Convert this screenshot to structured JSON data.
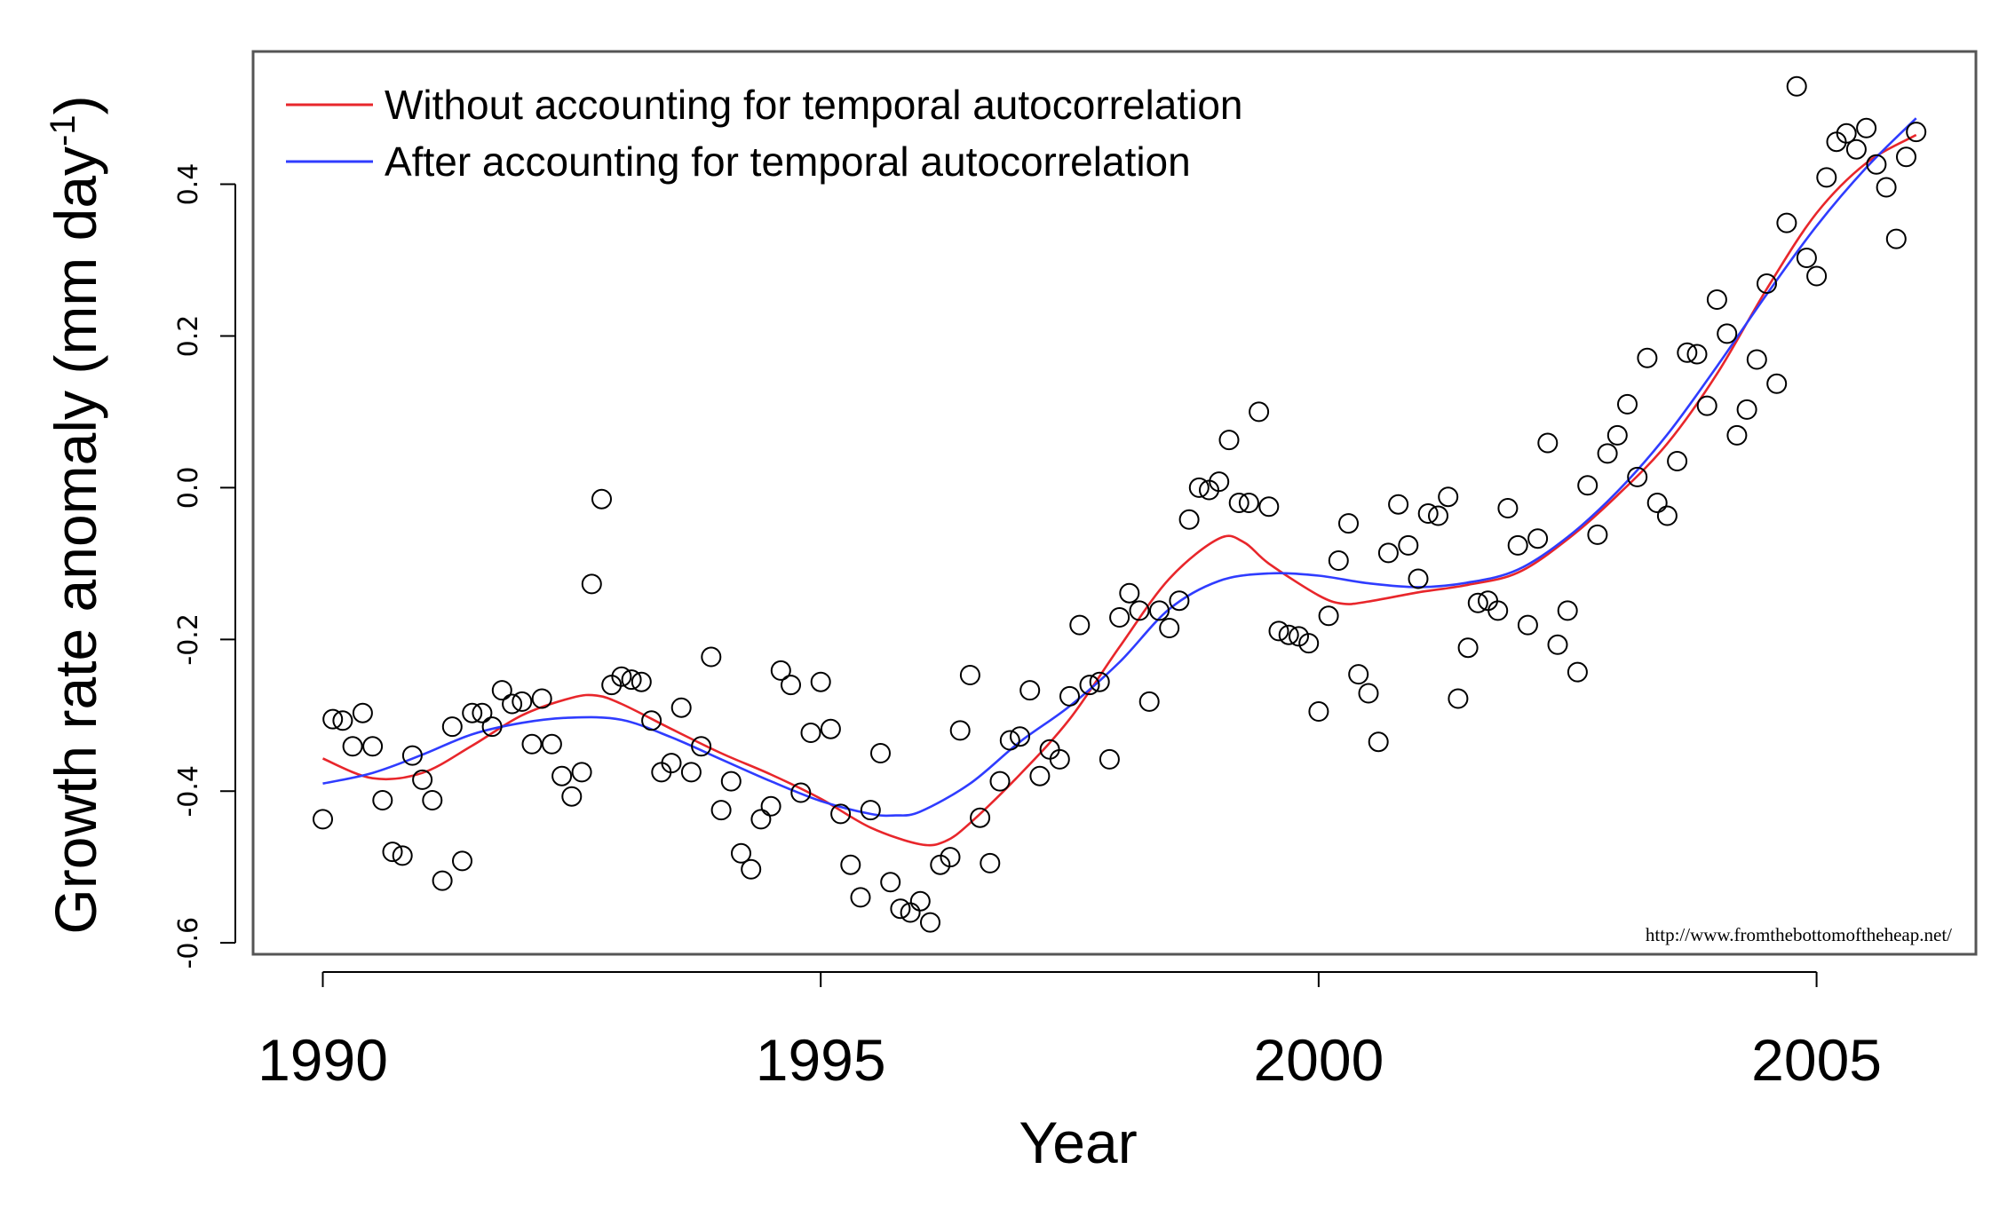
{
  "chart_data": {
    "type": "scatter",
    "title": "",
    "xlabel": "Year",
    "ylabel": "Growth rate anomaly (mm day",
    "ylabel_unit_superscript": "-1",
    "ylabel_close": ")",
    "xlim": [
      1989.3,
      2006.6
    ],
    "ylim": [
      -0.615,
      0.575
    ],
    "x_ticks": [
      {
        "value": 1990,
        "label": "1990"
      },
      {
        "value": 1995,
        "label": "1995"
      },
      {
        "value": 2000,
        "label": "2000"
      },
      {
        "value": 2005,
        "label": "2005"
      }
    ],
    "y_ticks": [
      {
        "value": -0.6,
        "label": "-0.6"
      },
      {
        "value": -0.4,
        "label": "-0.4"
      },
      {
        "value": -0.2,
        "label": "-0.2"
      },
      {
        "value": 0.0,
        "label": "0.0"
      },
      {
        "value": 0.2,
        "label": "0.2"
      },
      {
        "value": 0.4,
        "label": "0.4"
      }
    ],
    "legend": {
      "placement": "top-left",
      "entries": [
        {
          "label": "Without accounting for temporal autocorrelation",
          "color": "#e8262b"
        },
        {
          "label": "After accounting for temporal autocorrelation",
          "color": "#2f3cff"
        }
      ]
    },
    "annotation": "http://www.fromthebottomoftheheap.net/",
    "point_style": {
      "color": "#000000",
      "fill": "none"
    },
    "points": [
      [
        1990.0,
        -0.437
      ],
      [
        1990.1,
        -0.305
      ],
      [
        1990.2,
        -0.307
      ],
      [
        1990.3,
        -0.341
      ],
      [
        1990.4,
        -0.297
      ],
      [
        1990.5,
        -0.341
      ],
      [
        1990.6,
        -0.412
      ],
      [
        1990.7,
        -0.48
      ],
      [
        1990.8,
        -0.485
      ],
      [
        1990.9,
        -0.353
      ],
      [
        1991.0,
        -0.385
      ],
      [
        1991.1,
        -0.412
      ],
      [
        1991.2,
        -0.518
      ],
      [
        1991.3,
        -0.315
      ],
      [
        1991.4,
        -0.492
      ],
      [
        1991.5,
        -0.297
      ],
      [
        1991.6,
        -0.297
      ],
      [
        1991.7,
        -0.315
      ],
      [
        1991.8,
        -0.267
      ],
      [
        1991.9,
        -0.285
      ],
      [
        1992.0,
        -0.282
      ],
      [
        1992.1,
        -0.338
      ],
      [
        1992.2,
        -0.278
      ],
      [
        1992.3,
        -0.338
      ],
      [
        1992.4,
        -0.38
      ],
      [
        1992.5,
        -0.407
      ],
      [
        1992.6,
        -0.375
      ],
      [
        1992.7,
        -0.127
      ],
      [
        1992.8,
        -0.015
      ],
      [
        1992.9,
        -0.26
      ],
      [
        1993.0,
        -0.249
      ],
      [
        1993.1,
        -0.253
      ],
      [
        1993.2,
        -0.256
      ],
      [
        1993.3,
        -0.307
      ],
      [
        1993.4,
        -0.375
      ],
      [
        1993.5,
        -0.363
      ],
      [
        1993.6,
        -0.29
      ],
      [
        1993.7,
        -0.375
      ],
      [
        1993.8,
        -0.341
      ],
      [
        1993.9,
        -0.223
      ],
      [
        1994.0,
        -0.425
      ],
      [
        1994.1,
        -0.387
      ],
      [
        1994.2,
        -0.482
      ],
      [
        1994.3,
        -0.503
      ],
      [
        1994.4,
        -0.437
      ],
      [
        1994.5,
        -0.42
      ],
      [
        1994.6,
        -0.241
      ],
      [
        1994.7,
        -0.26
      ],
      [
        1994.8,
        -0.402
      ],
      [
        1994.9,
        -0.323
      ],
      [
        1995.0,
        -0.256
      ],
      [
        1995.1,
        -0.318
      ],
      [
        1995.2,
        -0.43
      ],
      [
        1995.3,
        -0.497
      ],
      [
        1995.4,
        -0.54
      ],
      [
        1995.5,
        -0.425
      ],
      [
        1995.6,
        -0.35
      ],
      [
        1995.7,
        -0.52
      ],
      [
        1995.8,
        -0.555
      ],
      [
        1995.9,
        -0.56
      ],
      [
        1996.0,
        -0.545
      ],
      [
        1996.1,
        -0.573
      ],
      [
        1996.2,
        -0.497
      ],
      [
        1996.3,
        -0.487
      ],
      [
        1996.4,
        -0.32
      ],
      [
        1996.5,
        -0.247
      ],
      [
        1996.6,
        -0.435
      ],
      [
        1996.7,
        -0.495
      ],
      [
        1996.8,
        -0.387
      ],
      [
        1996.9,
        -0.333
      ],
      [
        1997.0,
        -0.328
      ],
      [
        1997.1,
        -0.267
      ],
      [
        1997.2,
        -0.38
      ],
      [
        1997.3,
        -0.345
      ],
      [
        1997.4,
        -0.358
      ],
      [
        1997.5,
        -0.275
      ],
      [
        1997.6,
        -0.181
      ],
      [
        1997.7,
        -0.26
      ],
      [
        1997.8,
        -0.256
      ],
      [
        1997.9,
        -0.358
      ],
      [
        1998.0,
        -0.171
      ],
      [
        1998.1,
        -0.139
      ],
      [
        1998.2,
        -0.162
      ],
      [
        1998.3,
        -0.282
      ],
      [
        1998.4,
        -0.162
      ],
      [
        1998.5,
        -0.185
      ],
      [
        1998.6,
        -0.149
      ],
      [
        1998.7,
        -0.042
      ],
      [
        1998.8,
        0.0
      ],
      [
        1998.9,
        -0.003
      ],
      [
        1999.0,
        0.008
      ],
      [
        1999.1,
        0.063
      ],
      [
        1999.2,
        -0.02
      ],
      [
        1999.3,
        -0.02
      ],
      [
        1999.4,
        0.1
      ],
      [
        1999.5,
        -0.025
      ],
      [
        1999.6,
        -0.189
      ],
      [
        1999.7,
        -0.194
      ],
      [
        1999.8,
        -0.196
      ],
      [
        1999.9,
        -0.205
      ],
      [
        2000.0,
        -0.295
      ],
      [
        2000.1,
        -0.169
      ],
      [
        2000.2,
        -0.096
      ],
      [
        2000.3,
        -0.047
      ],
      [
        2000.4,
        -0.246
      ],
      [
        2000.5,
        -0.271
      ],
      [
        2000.6,
        -0.335
      ],
      [
        2000.7,
        -0.086
      ],
      [
        2000.8,
        -0.022
      ],
      [
        2000.9,
        -0.076
      ],
      [
        2001.0,
        -0.12
      ],
      [
        2001.1,
        -0.034
      ],
      [
        2001.2,
        -0.037
      ],
      [
        2001.3,
        -0.012
      ],
      [
        2001.4,
        -0.278
      ],
      [
        2001.5,
        -0.211
      ],
      [
        2001.6,
        -0.152
      ],
      [
        2001.7,
        -0.149
      ],
      [
        2001.8,
        -0.162
      ],
      [
        2001.9,
        -0.027
      ],
      [
        2002.0,
        -0.076
      ],
      [
        2002.1,
        -0.181
      ],
      [
        2002.2,
        -0.067
      ],
      [
        2002.3,
        0.059
      ],
      [
        2002.4,
        -0.207
      ],
      [
        2002.5,
        -0.162
      ],
      [
        2002.6,
        -0.243
      ],
      [
        2002.7,
        0.003
      ],
      [
        2002.8,
        -0.062
      ],
      [
        2002.9,
        0.045
      ],
      [
        2003.0,
        0.069
      ],
      [
        2003.1,
        0.11
      ],
      [
        2003.2,
        0.014
      ],
      [
        2003.3,
        0.171
      ],
      [
        2003.4,
        -0.02
      ],
      [
        2003.5,
        -0.037
      ],
      [
        2003.6,
        0.035
      ],
      [
        2003.7,
        0.178
      ],
      [
        2003.8,
        0.176
      ],
      [
        2003.9,
        0.108
      ],
      [
        2004.0,
        0.248
      ],
      [
        2004.1,
        0.203
      ],
      [
        2004.2,
        0.069
      ],
      [
        2004.3,
        0.103
      ],
      [
        2004.4,
        0.169
      ],
      [
        2004.5,
        0.269
      ],
      [
        2004.6,
        0.137
      ],
      [
        2004.7,
        0.349
      ],
      [
        2004.8,
        0.529
      ],
      [
        2004.9,
        0.303
      ],
      [
        2005.0,
        0.279
      ],
      [
        2005.1,
        0.409
      ],
      [
        2005.2,
        0.456
      ],
      [
        2005.3,
        0.467
      ],
      [
        2005.4,
        0.446
      ],
      [
        2005.5,
        0.474
      ],
      [
        2005.6,
        0.426
      ],
      [
        2005.7,
        0.396
      ],
      [
        2005.8,
        0.328
      ],
      [
        2005.9,
        0.436
      ],
      [
        2006.0,
        0.469
      ]
    ],
    "series": [
      {
        "name": "Without accounting for temporal autocorrelation",
        "color": "#e8262b",
        "x": [
          1990.0,
          1990.5,
          1991.0,
          1991.5,
          1992.0,
          1992.5,
          1992.75,
          1993.0,
          1993.5,
          1994.0,
          1994.5,
          1995.0,
          1995.5,
          1996.0,
          1996.25,
          1996.5,
          1997.0,
          1997.5,
          1998.0,
          1998.5,
          1999.0,
          1999.25,
          1999.5,
          2000.0,
          2000.25,
          2000.5,
          2001.0,
          2001.5,
          2002.0,
          2002.5,
          2003.0,
          2003.5,
          2004.0,
          2004.5,
          2005.0,
          2005.5,
          2006.0
        ],
        "y": [
          -0.357,
          -0.383,
          -0.376,
          -0.34,
          -0.3,
          -0.277,
          -0.274,
          -0.285,
          -0.318,
          -0.35,
          -0.378,
          -0.41,
          -0.448,
          -0.47,
          -0.466,
          -0.442,
          -0.378,
          -0.305,
          -0.21,
          -0.12,
          -0.067,
          -0.072,
          -0.1,
          -0.142,
          -0.153,
          -0.15,
          -0.138,
          -0.128,
          -0.112,
          -0.068,
          -0.01,
          0.058,
          0.15,
          0.262,
          0.362,
          0.428,
          0.465
        ]
      },
      {
        "name": "After accounting for temporal autocorrelation",
        "color": "#2f3cff",
        "x": [
          1990.0,
          1990.5,
          1991.0,
          1991.5,
          1992.0,
          1992.5,
          1993.0,
          1993.5,
          1994.0,
          1994.5,
          1995.0,
          1995.5,
          1995.75,
          1996.0,
          1996.5,
          1997.0,
          1997.5,
          1998.0,
          1998.5,
          1999.0,
          1999.5,
          2000.0,
          2000.5,
          2001.0,
          2001.5,
          2002.0,
          2002.5,
          2003.0,
          2003.5,
          2004.0,
          2004.5,
          2005.0,
          2005.5,
          2006.0
        ],
        "y": [
          -0.39,
          -0.376,
          -0.352,
          -0.325,
          -0.31,
          -0.303,
          -0.306,
          -0.329,
          -0.358,
          -0.387,
          -0.413,
          -0.43,
          -0.432,
          -0.427,
          -0.39,
          -0.335,
          -0.288,
          -0.23,
          -0.16,
          -0.123,
          -0.113,
          -0.116,
          -0.126,
          -0.131,
          -0.125,
          -0.108,
          -0.065,
          -0.005,
          0.07,
          0.16,
          0.255,
          0.345,
          0.422,
          0.487
        ]
      }
    ]
  }
}
